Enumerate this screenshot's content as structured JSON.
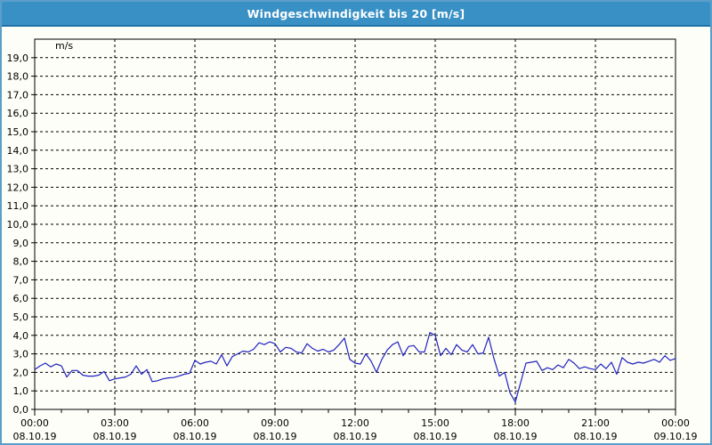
{
  "window": {
    "title": "Windgeschwindigkeit bis 20 [m/s]"
  },
  "colors": {
    "titlebar_bg": "#3990C4",
    "titlebar_underline": "#2172A8",
    "window_border": "#5B9EC9",
    "window_bg": "#FDFEF7",
    "title_text": "#FFFFFF",
    "axis_and_grid": "#000000",
    "line_color": "#2222C0",
    "label_text": "#000000"
  },
  "chart_data": {
    "type": "line",
    "title": "Windgeschwindigkeit bis 20 [m/s]",
    "series_name": "Windgeschwindigkeit",
    "unit_label": "m/s",
    "ylabel": "m/s",
    "xlabel": "",
    "ylim": [
      0,
      20
    ],
    "y_gridline_step": 1,
    "grid": "dashed",
    "legend": "none",
    "y_tick_labels": [
      "0,0",
      "1,0",
      "2,0",
      "3,0",
      "4,0",
      "5,0",
      "6,0",
      "7,0",
      "8,0",
      "9,0",
      "10,0",
      "11,0",
      "12,0",
      "13,0",
      "14,0",
      "15,0",
      "16,0",
      "17,0",
      "18,0",
      "19,0"
    ],
    "x_axis": {
      "range_hours": [
        0,
        24
      ],
      "major_step_hours": 3,
      "minor_step_hours": 1,
      "major_tick_hours": [
        0,
        3,
        6,
        9,
        12,
        15,
        18,
        21,
        24
      ],
      "time_labels": [
        "00:00",
        "03:00",
        "06:00",
        "09:00",
        "12:00",
        "15:00",
        "18:00",
        "21:00",
        "00:00"
      ],
      "date_labels": [
        "08.10.19",
        "08.10.19",
        "08.10.19",
        "08.10.19",
        "08.10.19",
        "08.10.19",
        "08.10.19",
        "08.10.19",
        "09.10.19"
      ]
    },
    "x_start_hours": 0,
    "x_step_hours": 0.2,
    "values": [
      2.15,
      2.35,
      2.5,
      2.3,
      2.45,
      2.35,
      1.75,
      2.1,
      2.1,
      1.85,
      1.8,
      1.8,
      1.85,
      2.05,
      1.55,
      1.65,
      1.7,
      1.75,
      1.9,
      2.35,
      1.9,
      2.15,
      1.5,
      1.55,
      1.65,
      1.7,
      1.72,
      1.8,
      1.9,
      1.95,
      2.65,
      2.45,
      2.55,
      2.6,
      2.45,
      2.95,
      2.35,
      2.85,
      3.0,
      3.15,
      3.1,
      3.25,
      3.6,
      3.5,
      3.65,
      3.55,
      3.1,
      3.35,
      3.3,
      3.1,
      3.05,
      3.55,
      3.3,
      3.15,
      3.25,
      3.1,
      3.2,
      3.5,
      3.85,
      2.7,
      2.5,
      2.45,
      3.0,
      2.6,
      2.0,
      2.7,
      3.2,
      3.5,
      3.65,
      2.9,
      3.4,
      3.45,
      3.1,
      3.1,
      4.15,
      4.0,
      2.9,
      3.3,
      2.95,
      3.5,
      3.2,
      3.1,
      3.5,
      3.0,
      3.05,
      3.9,
      2.75,
      1.8,
      2.0,
      0.9,
      0.4,
      1.45,
      2.5,
      2.55,
      2.6,
      2.1,
      2.25,
      2.15,
      2.4,
      2.25,
      2.7,
      2.5,
      2.2,
      2.3,
      2.2,
      2.15,
      2.45,
      2.2,
      2.55,
      1.9,
      2.8,
      2.55,
      2.45,
      2.55,
      2.5,
      2.6,
      2.7,
      2.55,
      2.9,
      2.65,
      2.75
    ]
  }
}
